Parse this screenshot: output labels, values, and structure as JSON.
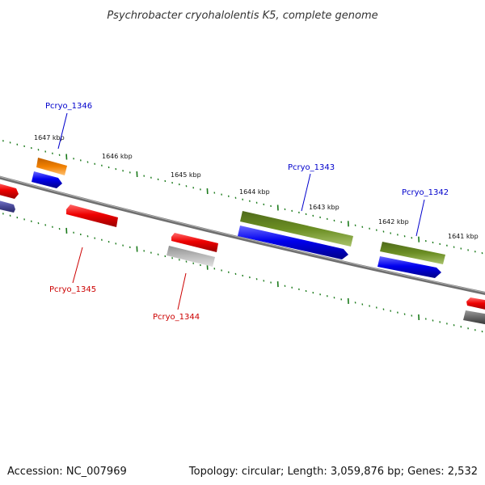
{
  "header": {
    "title": "Psychrobacter cryohalolentis K5, complete genome"
  },
  "footer": {
    "accession": "Accession: NC_007969",
    "summary": "Topology: circular; Length: 3,059,876 bp; Genes: 2,532"
  },
  "colors": {
    "backbone": "#7a7a7a",
    "tick": "#1a7a1a",
    "label_forward": "#0000cc",
    "label_reverse": "#cc0000",
    "gene_red": "#ee0000",
    "gene_blue": "#0000ee",
    "gene_olive": "#6b8e23",
    "gene_orange": "#f08000",
    "gene_gray": "#bbbbbb",
    "gene_darkgray": "#666666",
    "gene_slate": "#4a4a9a"
  },
  "scale": {
    "labels": [
      "1647 kbp",
      "1646 kbp",
      "1645 kbp",
      "1644 kbp",
      "1643 kbp",
      "1642 kbp",
      "1641 kbp"
    ]
  },
  "gene_labels": {
    "pcryo_1346": "Pcryo_1346",
    "pcryo_1345": "Pcryo_1345",
    "pcryo_1344": "Pcryo_1344",
    "pcryo_1343": "Pcryo_1343",
    "pcryo_1342": "Pcryo_1342"
  }
}
